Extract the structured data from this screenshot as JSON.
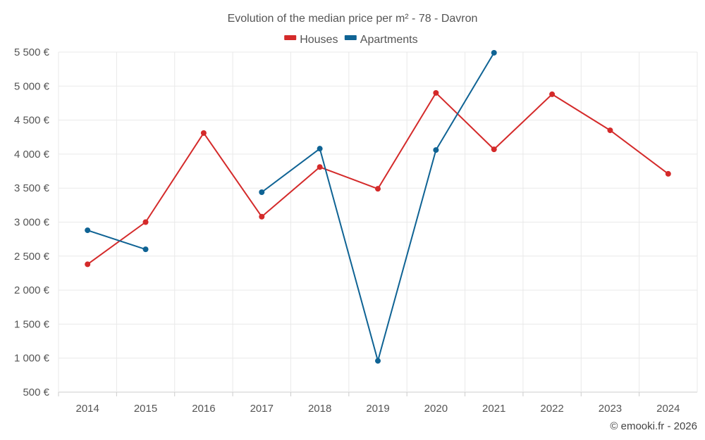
{
  "chart_data": {
    "type": "line",
    "title": "Evolution of the median price per m² - 78 - Davron",
    "categories": [
      "2014",
      "2015",
      "2016",
      "2017",
      "2018",
      "2019",
      "2020",
      "2021",
      "2022",
      "2023",
      "2024"
    ],
    "series": [
      {
        "name": "Houses",
        "color": "#d42a2a",
        "values": [
          2380,
          3000,
          4310,
          3080,
          3810,
          3490,
          4900,
          4070,
          4880,
          4350,
          3710
        ]
      },
      {
        "name": "Apartments",
        "color": "#0f6394",
        "values": [
          2880,
          2600,
          null,
          3440,
          4080,
          960,
          4060,
          5490,
          null,
          null,
          null
        ]
      }
    ],
    "ylim": [
      500,
      5500
    ],
    "yticks": [
      500,
      1000,
      1500,
      2000,
      2500,
      3000,
      3500,
      4000,
      4500,
      5000,
      5500
    ],
    "ytick_labels": [
      "500 €",
      "1 000 €",
      "1 500 €",
      "2 000 €",
      "2 500 €",
      "3 000 €",
      "3 500 €",
      "4 000 €",
      "4 500 €",
      "5 000 €",
      "5 500 €"
    ],
    "xlabel": "",
    "ylabel": "",
    "legend_position": "top-center",
    "grid": true
  },
  "credit": "© emooki.fr - 2026"
}
